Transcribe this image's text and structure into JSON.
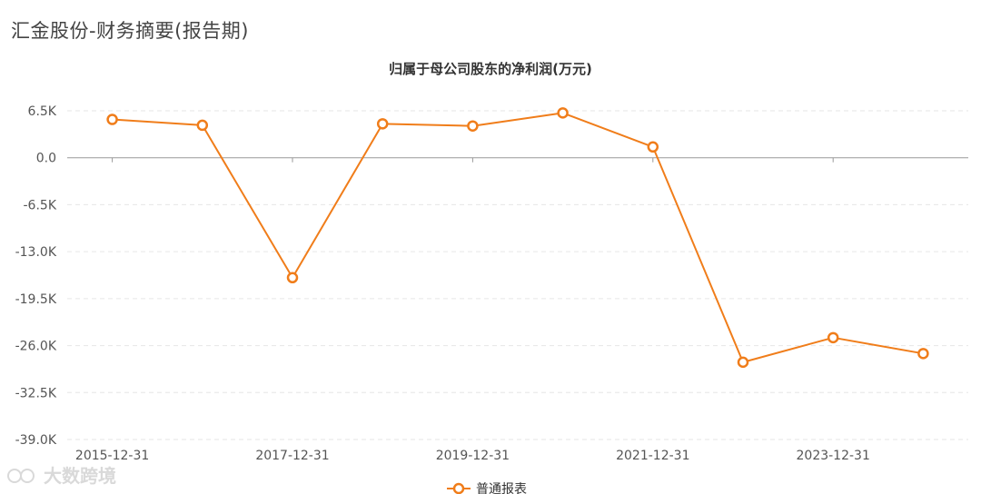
{
  "page": {
    "title": "汇金股份-财务摘要(报告期)"
  },
  "watermark": {
    "text": "大数跨境"
  },
  "chart_data": {
    "type": "line",
    "title": "归属于母公司股东的净利润(万元)",
    "xlabel": "",
    "ylabel": "",
    "x": [
      "2015-12-31",
      "2016-12-31",
      "2017-12-31",
      "2018-12-31",
      "2019-12-31",
      "2020-12-31",
      "2021-12-31",
      "2022-12-31",
      "2023-12-31",
      "2024-12-31"
    ],
    "x_tick_labels": [
      "2015-12-31",
      "2017-12-31",
      "2019-12-31",
      "2021-12-31",
      "2023-12-31"
    ],
    "y_tick_labels": [
      "6.5K",
      "0.0",
      "-6.5K",
      "-13.0K",
      "-19.5K",
      "-26.0K",
      "-32.5K",
      "-39.0K"
    ],
    "ylim": [
      -39000,
      6500
    ],
    "series": [
      {
        "name": "普通报表",
        "values": [
          5300,
          4500,
          -16600,
          4700,
          4400,
          6200,
          1500,
          -28300,
          -24900,
          -27100
        ]
      }
    ],
    "legend_position": "bottom-center",
    "grid": "horizontal-dashed",
    "colors": {
      "line": "#f07d1a",
      "marker_fill": "#ffffff",
      "grid": "#e6e6e6",
      "zero_axis": "#999999",
      "tick_text": "#555555"
    }
  }
}
